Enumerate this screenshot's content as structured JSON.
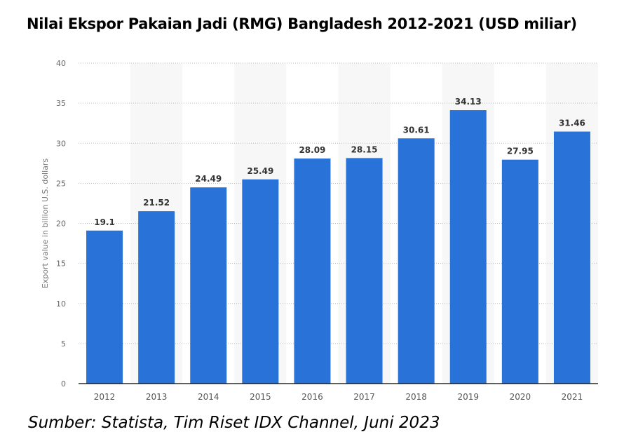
{
  "chart_data": {
    "type": "bar",
    "title": "Nilai Ekspor Pakaian Jadi (RMG) Bangladesh 2012-2021 (USD miliar)",
    "categories": [
      "2012",
      "2013",
      "2014",
      "2015",
      "2016",
      "2017",
      "2018",
      "2019",
      "2020",
      "2021"
    ],
    "values": [
      19.1,
      21.52,
      24.49,
      25.49,
      28.09,
      28.15,
      30.61,
      34.13,
      27.95,
      31.46
    ],
    "value_labels": [
      "19.1",
      "21.52",
      "24.49",
      "25.49",
      "28.09",
      "28.15",
      "30.61",
      "34.13",
      "27.95",
      "31.46"
    ],
    "xlabel": "",
    "ylabel": "Export value in billion U.S. dollars",
    "ylim": [
      0,
      40
    ],
    "yticks": [
      0,
      5,
      10,
      15,
      20,
      25,
      30,
      35,
      40
    ],
    "grid": true,
    "bar_color": "#2872d8"
  },
  "source": "Sumber: Statista, Tim Riset IDX Channel, Juni 2023"
}
